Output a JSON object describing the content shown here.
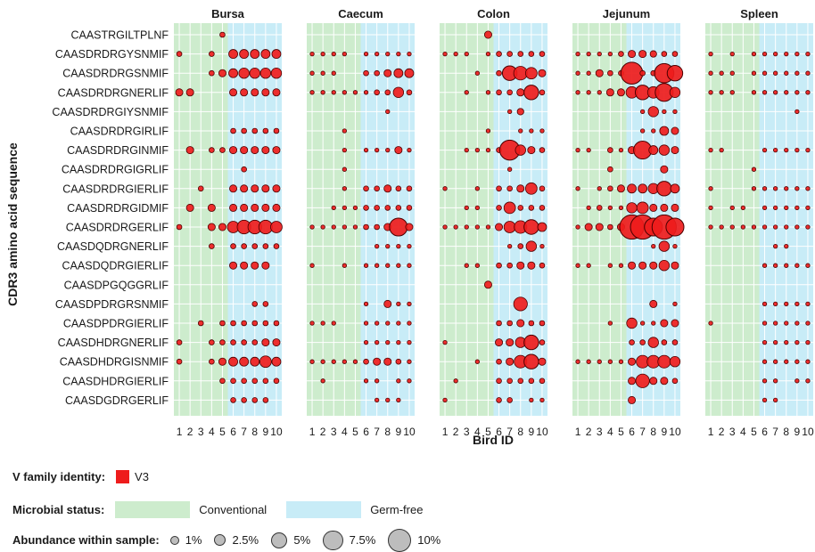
{
  "chart_data": {
    "type": "scatter",
    "ylabel": "CDR3 amino acid sequence",
    "xlabel": "Bird ID",
    "panels": [
      "Bursa",
      "Caecum",
      "Colon",
      "Jejunum",
      "Spleen"
    ],
    "bird_ids": [
      "1",
      "2",
      "3",
      "4",
      "5",
      "6",
      "7",
      "8",
      "9",
      "10"
    ],
    "sequences": [
      "CAASTRGILTPLNF",
      "CAASDRDRGYSNMIF",
      "CAASDRDRGSNMIF",
      "CAASDRDRGNERLIF",
      "CAASDRDRGIYSNMIF",
      "CAASDRDRGIRLIF",
      "CAASDRDRGINMIF",
      "CAASDRDRGIGRLIF",
      "CAASDRDRGIERLIF",
      "CAASDRDRGIDMIF",
      "CAASDRDRGERLIF",
      "CAASDQDRGNERLIF",
      "CAASDQDRGIERLIF",
      "CAASDPGQGGRLIF",
      "CAASDPDRGRSNMIF",
      "CAASDPDRGIERLIF",
      "CAASDHDRGNERLIF",
      "CAASDHDRGISNMIF",
      "CAASDHDRGIERLIF",
      "CAASDGDRGERLIF"
    ],
    "microbial_status_by_bird": {
      "Conventional": [
        "1",
        "2",
        "3",
        "4",
        "5"
      ],
      "Germ-free": [
        "6",
        "7",
        "8",
        "9",
        "10"
      ]
    },
    "v_family": "V3",
    "abundance_pct": {
      "Bursa": [
        [
          0,
          0,
          0,
          0,
          0.5,
          0,
          0,
          0,
          0,
          0
        ],
        [
          0.5,
          0,
          0,
          0.5,
          0,
          1.5,
          1.5,
          1.5,
          1.5,
          1.5
        ],
        [
          0,
          0,
          0,
          0.5,
          1,
          1.5,
          2,
          2,
          2,
          2
        ],
        [
          1,
          1,
          0,
          0,
          0,
          1,
          1,
          1,
          1,
          1
        ],
        [
          0,
          0,
          0,
          0,
          0,
          0,
          0,
          0,
          0,
          0
        ],
        [
          0,
          0,
          0,
          0,
          0,
          0.5,
          0.5,
          0.5,
          0.5,
          0.5
        ],
        [
          0,
          1,
          0,
          0.5,
          0.5,
          1,
          1,
          1,
          1,
          1
        ],
        [
          0,
          0,
          0,
          0,
          0,
          0,
          0.5,
          0,
          0,
          0
        ],
        [
          0,
          0,
          0.5,
          0,
          0,
          1,
          1,
          1,
          1,
          1
        ],
        [
          0,
          1,
          0,
          1,
          0,
          1,
          1,
          1,
          1,
          1
        ],
        [
          0.5,
          0,
          0,
          1,
          1,
          2.5,
          3.5,
          3.5,
          3.5,
          2.5
        ],
        [
          0,
          0,
          0,
          0.5,
          0,
          0.5,
          0.5,
          0.5,
          0.5,
          0.5
        ],
        [
          0,
          0,
          0,
          0,
          0,
          1,
          1,
          1,
          1,
          0
        ],
        [
          0,
          0,
          0,
          0,
          0,
          0,
          0,
          0,
          0,
          0
        ],
        [
          0,
          0,
          0,
          0,
          0,
          0,
          0,
          0.5,
          0.5,
          0
        ],
        [
          0,
          0,
          0.5,
          0,
          0.5,
          0.5,
          0.5,
          0.5,
          0.5,
          0.5
        ],
        [
          0.5,
          0,
          0,
          0.5,
          0.5,
          0.5,
          0.5,
          0.5,
          1,
          1
        ],
        [
          0.5,
          0,
          0,
          0.5,
          1,
          1.5,
          1.5,
          1.5,
          2.5,
          1.5
        ],
        [
          0,
          0,
          0,
          0,
          0.5,
          0.5,
          0.5,
          0.5,
          0.5,
          0.5
        ],
        [
          0,
          0,
          0,
          0,
          0,
          0.5,
          0.5,
          0.5,
          0.5,
          0
        ]
      ],
      "Caecum": [
        [
          0,
          0,
          0,
          0,
          0,
          0,
          0,
          0,
          0,
          0
        ],
        [
          0.3,
          0.3,
          0.3,
          0.3,
          0,
          0.3,
          0.3,
          0.3,
          0.3,
          0.3
        ],
        [
          0.3,
          0.3,
          0.3,
          0,
          0,
          0.5,
          0.5,
          1,
          1.5,
          1.5
        ],
        [
          0.3,
          0.3,
          0.3,
          0.3,
          0.3,
          0.3,
          0.5,
          0.5,
          2,
          0.5
        ],
        [
          0,
          0,
          0,
          0,
          0,
          0,
          0,
          0.3,
          0,
          0
        ],
        [
          0,
          0,
          0,
          0.3,
          0,
          0,
          0,
          0,
          0,
          0
        ],
        [
          0,
          0,
          0,
          0.3,
          0,
          0.3,
          0.3,
          0.3,
          1,
          0.3
        ],
        [
          0,
          0,
          0,
          0.3,
          0,
          0,
          0,
          0,
          0,
          0
        ],
        [
          0,
          0,
          0,
          0.3,
          0,
          0.5,
          0.5,
          1,
          0.5,
          0.5
        ],
        [
          0,
          0,
          0.3,
          0.3,
          0.3,
          0.5,
          0.5,
          0.5,
          0.5,
          0.5
        ],
        [
          0.3,
          0.3,
          0.3,
          0.3,
          0.3,
          0.5,
          0.5,
          1,
          6,
          1
        ],
        [
          0,
          0,
          0,
          0,
          0,
          0,
          0.3,
          0.3,
          0.3,
          0.3
        ],
        [
          0.3,
          0,
          0,
          0.3,
          0,
          0.3,
          0.3,
          0.3,
          0.3,
          0.3
        ],
        [
          0,
          0,
          0,
          0,
          0,
          0,
          0,
          0,
          0,
          0
        ],
        [
          0,
          0,
          0,
          0,
          0,
          0.3,
          0,
          1,
          0.3,
          0.3
        ],
        [
          0.3,
          0.3,
          0.3,
          0,
          0,
          0.3,
          0.3,
          0.3,
          0.3,
          0.3
        ],
        [
          0,
          0,
          0,
          0,
          0,
          0.3,
          0.3,
          0.3,
          0.3,
          0.3
        ],
        [
          0.3,
          0.3,
          0.3,
          0.3,
          0.3,
          0.5,
          1,
          1,
          0.5,
          0.3
        ],
        [
          0,
          0.3,
          0,
          0,
          0,
          0.3,
          0.3,
          0,
          0.3,
          0.3
        ],
        [
          0,
          0,
          0,
          0,
          0,
          0,
          0.3,
          0.3,
          0.3,
          0
        ]
      ],
      "Colon": [
        [
          0,
          0,
          0,
          0,
          1,
          0,
          0,
          0,
          0,
          0
        ],
        [
          0.3,
          0.3,
          0.3,
          0,
          0.3,
          0.5,
          0.5,
          0.5,
          0.5,
          0.5
        ],
        [
          0,
          0,
          0,
          0.3,
          0,
          0.5,
          4,
          3.5,
          2.5,
          1
        ],
        [
          0,
          0,
          0.3,
          0,
          0.3,
          0.5,
          0.5,
          1,
          4,
          0.5
        ],
        [
          0,
          0,
          0,
          0,
          0,
          0,
          0.3,
          0.8,
          0,
          0
        ],
        [
          0,
          0,
          0,
          0,
          0.3,
          0,
          0,
          0.3,
          0.3,
          0.3
        ],
        [
          0,
          0,
          0.3,
          0.3,
          0.3,
          0.5,
          7.5,
          2,
          1,
          0.5
        ],
        [
          0,
          0,
          0,
          0,
          0,
          0,
          0.3,
          0,
          0,
          0
        ],
        [
          0.3,
          0,
          0,
          0.3,
          0,
          0.5,
          0.5,
          1,
          2.5,
          0.5
        ],
        [
          0,
          0,
          0.3,
          0.3,
          0,
          0.5,
          2.5,
          0.5,
          0.5,
          0.5
        ],
        [
          0.3,
          0.3,
          0.3,
          0.3,
          0.3,
          1,
          2.5,
          3,
          4,
          1.5
        ],
        [
          0,
          0,
          0,
          0,
          0,
          0,
          0.3,
          0.5,
          2,
          0.3
        ],
        [
          0,
          0,
          0.3,
          0.3,
          0,
          0.5,
          0.5,
          1,
          1,
          0.5
        ],
        [
          0,
          0,
          0,
          0,
          1,
          0,
          0,
          0,
          0,
          0
        ],
        [
          0,
          0,
          0,
          0,
          0,
          0,
          0,
          3.5,
          0,
          0
        ],
        [
          0,
          0,
          0,
          0,
          0,
          0.5,
          0.5,
          1,
          0.5,
          0.5
        ],
        [
          0.3,
          0,
          0,
          0,
          0,
          1,
          1,
          2,
          4,
          0.5
        ],
        [
          0,
          0,
          0,
          0.3,
          0,
          0.5,
          1,
          3,
          4,
          1
        ],
        [
          0,
          0.3,
          0,
          0,
          0,
          0.5,
          0.5,
          0.5,
          0.5,
          0.5
        ],
        [
          0.3,
          0,
          0,
          0,
          0,
          0.5,
          0.5,
          0,
          0.3,
          0.3
        ]
      ],
      "Jejunum": [
        [
          0,
          0,
          0,
          0,
          0,
          0,
          0,
          0,
          0,
          0
        ],
        [
          0.3,
          0.3,
          0.3,
          0.3,
          0.5,
          1,
          1,
          0.8,
          0.5,
          0.5
        ],
        [
          0.3,
          0.3,
          1,
          0.5,
          0.5,
          9,
          0.5,
          0.5,
          7,
          4.5
        ],
        [
          0.3,
          0.3,
          0.3,
          1,
          1,
          2.5,
          4,
          2.5,
          6,
          2
        ],
        [
          0,
          0,
          0,
          0,
          0,
          0,
          0.3,
          2,
          0.3,
          0.3
        ],
        [
          0,
          0,
          0,
          0,
          0,
          0,
          0.3,
          0.3,
          1.5,
          1
        ],
        [
          0.3,
          0.3,
          0,
          0.5,
          0.3,
          1,
          6,
          1.5,
          2,
          1
        ],
        [
          0,
          0,
          0,
          0.5,
          0,
          0,
          0,
          0,
          1,
          0
        ],
        [
          0.3,
          0,
          0.3,
          0.5,
          1,
          1.5,
          1.5,
          2,
          4,
          1.5
        ],
        [
          0,
          0.3,
          0.5,
          0.3,
          0.3,
          2,
          2.5,
          1,
          1,
          1
        ],
        [
          0.3,
          1,
          1,
          0.5,
          1,
          11,
          11,
          6,
          11,
          6
        ],
        [
          0,
          0,
          0,
          0,
          0,
          0,
          0,
          0.3,
          2,
          0.3
        ],
        [
          0.3,
          0.3,
          0,
          0.3,
          0.3,
          1,
          1,
          1,
          2,
          1
        ],
        [
          0,
          0,
          0,
          0,
          0,
          0,
          0,
          0,
          0,
          0
        ],
        [
          0,
          0,
          0,
          0,
          0,
          0,
          0,
          1,
          0,
          0.3
        ],
        [
          0,
          0,
          0,
          0.3,
          0,
          2,
          0.3,
          0.3,
          1,
          1
        ],
        [
          0,
          0,
          0,
          0,
          0,
          0.5,
          0.5,
          2,
          0.5,
          0.5
        ],
        [
          0.3,
          0.3,
          0.3,
          0.3,
          0.3,
          1,
          3,
          3,
          3,
          2
        ],
        [
          0,
          0,
          0,
          0,
          0,
          1,
          3.5,
          1,
          1,
          0.5
        ],
        [
          0,
          0,
          0,
          0,
          0,
          1,
          0,
          0,
          0,
          0
        ]
      ],
      "Spleen": [
        [
          0,
          0,
          0,
          0,
          0,
          0,
          0,
          0,
          0,
          0
        ],
        [
          0.3,
          0,
          0.3,
          0,
          0.3,
          0.3,
          0.3,
          0.3,
          0.3,
          0.3
        ],
        [
          0.3,
          0.3,
          0.3,
          0,
          0.3,
          0.3,
          0.3,
          0.3,
          0.3,
          0.3
        ],
        [
          0.3,
          0.3,
          0.3,
          0,
          0.3,
          0.3,
          0.3,
          0.3,
          0.3,
          0.3
        ],
        [
          0,
          0,
          0,
          0,
          0,
          0,
          0,
          0,
          0.3,
          0
        ],
        [
          0,
          0,
          0,
          0,
          0,
          0,
          0,
          0,
          0,
          0
        ],
        [
          0.3,
          0.3,
          0,
          0,
          0,
          0.3,
          0.3,
          0.3,
          0.3,
          0.3
        ],
        [
          0,
          0,
          0,
          0,
          0.3,
          0,
          0,
          0,
          0,
          0
        ],
        [
          0.3,
          0,
          0,
          0,
          0.3,
          0.3,
          0.3,
          0.3,
          0.3,
          0.3
        ],
        [
          0.3,
          0,
          0.3,
          0.3,
          0,
          0.3,
          0.3,
          0.3,
          0.3,
          0.3
        ],
        [
          0.3,
          0.3,
          0.3,
          0.3,
          0.3,
          0.3,
          0.3,
          0.3,
          0.3,
          0.3
        ],
        [
          0,
          0,
          0,
          0,
          0,
          0,
          0.3,
          0.3,
          0,
          0
        ],
        [
          0,
          0,
          0,
          0,
          0,
          0.3,
          0.3,
          0.3,
          0.3,
          0.3
        ],
        [
          0,
          0,
          0,
          0,
          0,
          0,
          0,
          0,
          0,
          0
        ],
        [
          0,
          0,
          0,
          0,
          0,
          0.3,
          0.3,
          0.3,
          0.3,
          0.3
        ],
        [
          0.3,
          0,
          0,
          0,
          0,
          0.3,
          0.3,
          0.3,
          0.3,
          0.3
        ],
        [
          0,
          0,
          0,
          0,
          0,
          0.3,
          0.3,
          0.3,
          0.3,
          0.3
        ],
        [
          0,
          0,
          0,
          0,
          0,
          0.3,
          0.3,
          0.3,
          0.3,
          0.3
        ],
        [
          0,
          0,
          0,
          0,
          0,
          0.3,
          0.3,
          0,
          0.3,
          0.3
        ],
        [
          0,
          0,
          0,
          0,
          0,
          0.3,
          0.3,
          0,
          0,
          0
        ]
      ]
    },
    "grid": true,
    "legend_placement": "bottom-left"
  },
  "colors": {
    "conventional_bg": "#cdeccd",
    "germfree_bg": "#c8ecf7",
    "point_fill": "#ee1c1c",
    "point_stroke": "#4a0000",
    "gridline": "#ffffff"
  },
  "legend": {
    "v_family_title": "V family identity:",
    "v_family_label": "V3",
    "microbial_title": "Microbial status:",
    "conventional_label": "Conventional",
    "germfree_label": "Germ-free",
    "abundance_title": "Abundance within sample:",
    "abundance_keys": [
      {
        "label": "1%",
        "pct": 1
      },
      {
        "label": "2.5%",
        "pct": 2.5
      },
      {
        "label": "5%",
        "pct": 5
      },
      {
        "label": "7.5%",
        "pct": 7.5
      },
      {
        "label": "10%",
        "pct": 10
      }
    ]
  }
}
